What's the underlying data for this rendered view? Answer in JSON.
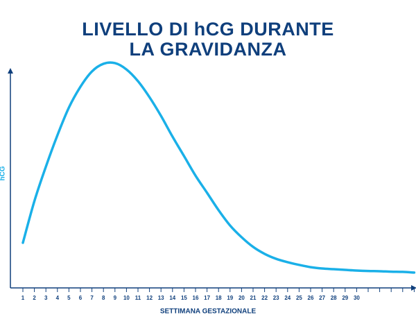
{
  "chart_data": {
    "type": "line",
    "title": "LIVELLO DI hCG DURANTE LA GRAVIDANZA",
    "x_label": "SETTIMANA GESTAZIONALE",
    "y_label": "hCG",
    "categories": [
      "1",
      "2",
      "3",
      "4",
      "5",
      "6",
      "7",
      "8",
      "9",
      "10",
      "11",
      "12",
      "13",
      "14",
      "15",
      "16",
      "17",
      "18",
      "19",
      "20",
      "21",
      "22",
      "23",
      "24",
      "25",
      "26",
      "27",
      "28",
      "29",
      "30",
      null,
      null,
      null,
      null,
      null
    ],
    "series": [
      {
        "name": "hCG",
        "color": "#1ab0e8",
        "values": [
          20,
          38.5,
          53.8,
          67.7,
          80,
          89.2,
          96,
          99.4,
          99.7,
          96.9,
          91.7,
          84.6,
          76.3,
          67.1,
          58.5,
          49.8,
          42.2,
          34.5,
          27.7,
          22.5,
          18.2,
          15.1,
          12.9,
          11.4,
          10.2,
          9.2,
          8.6,
          8.3,
          8,
          7.7,
          7.5,
          7.4,
          7.2,
          7.1,
          6.8
        ]
      }
    ],
    "ylim": [
      0,
      100
    ]
  }
}
